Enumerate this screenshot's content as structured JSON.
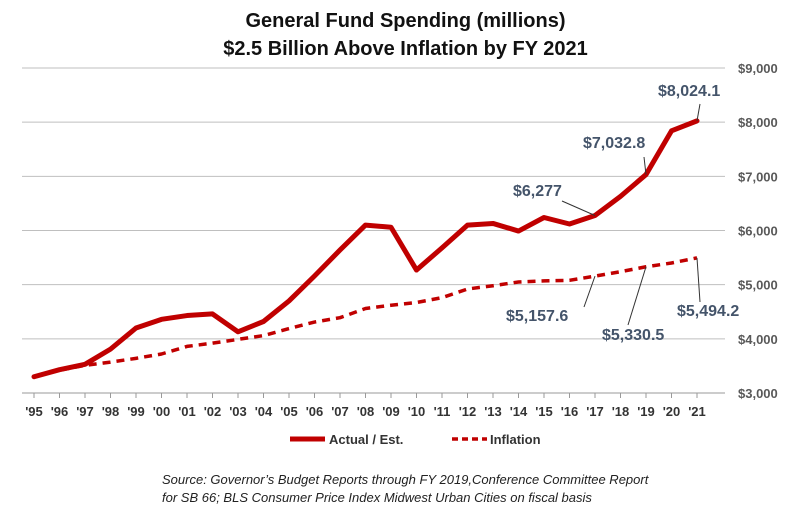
{
  "chart_data": {
    "type": "line",
    "title": "General Fund Spending (millions)",
    "subtitle": "$2.5 Billion Above Inflation by FY 2021",
    "categories": [
      "'95",
      "'96",
      "'97",
      "'98",
      "'99",
      "'00",
      "'01",
      "'02",
      "'03",
      "'04",
      "'05",
      "'06",
      "'07",
      "'08",
      "'09",
      "'10",
      "'11",
      "'12",
      "'13",
      "'14",
      "'15",
      "'16",
      "'17",
      "'18",
      "'19",
      "'20",
      "'21"
    ],
    "ylim": [
      3000,
      9000
    ],
    "yticks": [
      3000,
      4000,
      5000,
      6000,
      7000,
      8000,
      9000
    ],
    "ytick_labels": [
      "$3,000",
      "$4,000",
      "$5,000",
      "$6,000",
      "$7,000",
      "$8,000",
      "$9,000"
    ],
    "grid": true,
    "legend_position": "bottom",
    "series": [
      {
        "name": "Actual / Est.",
        "style": "solid",
        "color": "#c00000",
        "values": [
          3300,
          3430,
          3530,
          3810,
          4200,
          4360,
          4430,
          4460,
          4130,
          4320,
          4700,
          5160,
          5640,
          6100,
          6060,
          5270,
          5680,
          6100,
          6130,
          5990,
          6240,
          6120,
          6277,
          6630,
          7032.8,
          7840,
          8024.1
        ]
      },
      {
        "name": "Inflation",
        "style": "dashed",
        "color": "#c00000",
        "values": [
          3300,
          3420,
          3510,
          3570,
          3640,
          3720,
          3860,
          3920,
          3990,
          4060,
          4190,
          4310,
          4390,
          4560,
          4620,
          4670,
          4760,
          4920,
          4980,
          5050,
          5070,
          5080,
          5157.6,
          5240,
          5330.5,
          5400,
          5494.2
        ]
      }
    ],
    "annotations": [
      {
        "text": "$8,024.1",
        "x": "'21",
        "y": 8024.1
      },
      {
        "text": "$7,032.8",
        "x": "'19",
        "y": 7032.8
      },
      {
        "text": "$6,277",
        "x": "'17",
        "y": 6277
      },
      {
        "text": "$5,157.6",
        "x": "'17",
        "y": 5157.6
      },
      {
        "text": "$5,330.5",
        "x": "'19",
        "y": 5330.5
      },
      {
        "text": "$5,494.2",
        "x": "'21",
        "y": 5494.2
      }
    ],
    "annotation_color": "#44546a"
  },
  "source": {
    "line1": "Source: Governor’s Budget Reports through FY 2019,Conference Committee Report",
    "line2": "for SB 66; BLS Consumer Price Index Midwest Urban Cities on fiscal basis"
  }
}
